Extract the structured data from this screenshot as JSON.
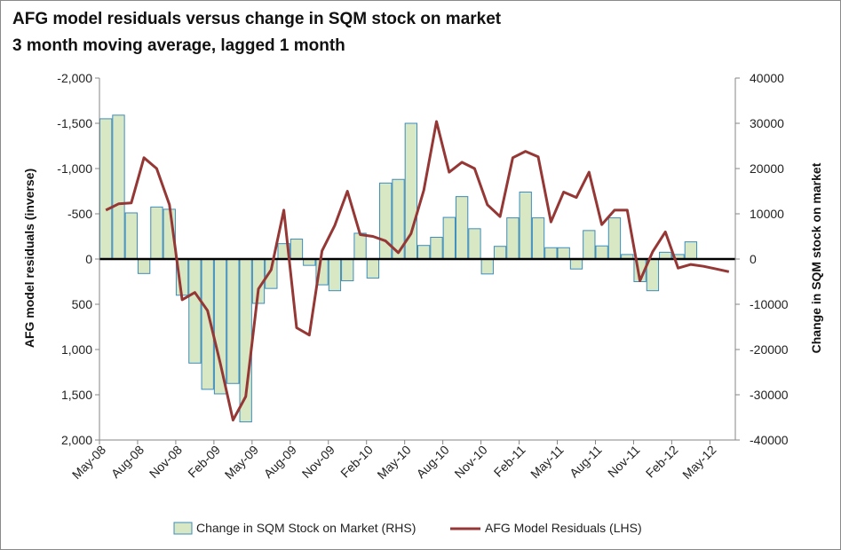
{
  "chart_data": {
    "type": "bar+line",
    "title": "AFG model residuals versus change in SQM stock on market",
    "subtitle": "3 month moving average, lagged 1 month",
    "ylabel_left": "AFG model residuals (inverse)",
    "ylabel_right": "Change in SQM stock on market",
    "left_axis": {
      "min": -2000,
      "max": 2000,
      "inverted": true,
      "ticks": [
        "-2,000",
        "-1,500",
        "-1,000",
        "-500",
        "0",
        "500",
        "1,000",
        "1,500",
        "2,000"
      ]
    },
    "right_axis": {
      "min": -40000,
      "max": 40000,
      "ticks": [
        "40000",
        "30000",
        "20000",
        "10000",
        "0",
        "-10000",
        "-20000",
        "-30000",
        "-40000"
      ]
    },
    "x_tick_labels": [
      "May-08",
      "Aug-08",
      "Nov-08",
      "Feb-09",
      "May-09",
      "Aug-09",
      "Nov-09",
      "Feb-10",
      "May-10",
      "Aug-10",
      "Nov-10",
      "Feb-11",
      "May-11",
      "Aug-11",
      "Nov-11",
      "Feb-12",
      "May-12"
    ],
    "months": [
      "May-08",
      "Jun-08",
      "Jul-08",
      "Aug-08",
      "Sep-08",
      "Oct-08",
      "Nov-08",
      "Dec-08",
      "Jan-09",
      "Feb-09",
      "Mar-09",
      "Apr-09",
      "May-09",
      "Jun-09",
      "Jul-09",
      "Aug-09",
      "Sep-09",
      "Oct-09",
      "Nov-09",
      "Dec-09",
      "Jan-10",
      "Feb-10",
      "Mar-10",
      "Apr-10",
      "May-10",
      "Jun-10",
      "Jul-10",
      "Aug-10",
      "Sep-10",
      "Oct-10",
      "Nov-10",
      "Dec-10",
      "Jan-11",
      "Feb-11",
      "Mar-11",
      "Apr-11",
      "May-11",
      "Jun-11",
      "Jul-11",
      "Aug-11",
      "Sep-11",
      "Oct-11",
      "Nov-11",
      "Dec-11",
      "Jan-12",
      "Feb-12",
      "Mar-12",
      "Apr-12",
      "May-12",
      "Jun-12"
    ],
    "series": [
      {
        "name": "Change in SQM Stock on Market (RHS)",
        "type": "bar",
        "axis": "right",
        "color": "#d8e8c4",
        "border": "#3c8cbc",
        "values": [
          31000,
          31800,
          10200,
          -3200,
          11500,
          11000,
          -8000,
          -23000,
          -28800,
          -29800,
          -27500,
          -36000,
          -9800,
          -6500,
          3400,
          4400,
          -1400,
          -5700,
          -7000,
          -4800,
          5700,
          -4200,
          16800,
          17600,
          30000,
          3000,
          4800,
          9200,
          13800,
          6700,
          -3300,
          2800,
          9100,
          14800,
          9100,
          2500,
          2500,
          -2200,
          6300,
          2900,
          9100,
          1000,
          -5000,
          -7000,
          1500,
          1000,
          3800,
          0,
          0,
          0
        ]
      },
      {
        "name": "AFG Model Residuals (LHS)",
        "type": "line",
        "axis": "left",
        "color": "#953735",
        "values": [
          -540,
          -610,
          -620,
          -1120,
          -1000,
          -600,
          450,
          370,
          570,
          1150,
          1780,
          1520,
          330,
          120,
          -540,
          760,
          840,
          -90,
          -370,
          -750,
          -270,
          -250,
          -200,
          -70,
          -280,
          -760,
          -1520,
          -960,
          -1070,
          -1000,
          -600,
          -470,
          -1120,
          -1190,
          -1130,
          -410,
          -740,
          -680,
          -960,
          -380,
          -540,
          -540,
          240,
          -80,
          -300,
          100,
          60,
          80,
          110,
          140
        ]
      }
    ]
  }
}
